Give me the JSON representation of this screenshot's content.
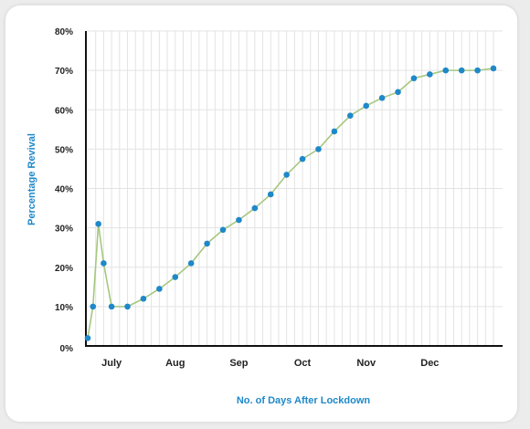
{
  "chart_data": {
    "type": "line",
    "title": "",
    "xlabel": "No. of Days After Lockdown",
    "ylabel": "Percentage Revival",
    "ylim": [
      0,
      80
    ],
    "y_ticks": [
      {
        "value": 0,
        "label": "0%"
      },
      {
        "value": 10,
        "label": "10%"
      },
      {
        "value": 20,
        "label": "20%"
      },
      {
        "value": 30,
        "label": "30%"
      },
      {
        "value": 40,
        "label": "40%"
      },
      {
        "value": 50,
        "label": "50%"
      },
      {
        "value": 60,
        "label": "60%"
      },
      {
        "value": 70,
        "label": "70%"
      },
      {
        "value": 80,
        "label": "80%"
      }
    ],
    "x_ticks": [
      {
        "value": 1.5,
        "label": "July"
      },
      {
        "value": 5.5,
        "label": "Aug"
      },
      {
        "value": 9.5,
        "label": "Sep"
      },
      {
        "value": 13.5,
        "label": "Oct"
      },
      {
        "value": 17.5,
        "label": "Nov"
      },
      {
        "value": 21.5,
        "label": "Dec"
      }
    ],
    "xlim": [
      0,
      25.5
    ],
    "grid": {
      "vertical": true,
      "horizontal": true
    },
    "series": [
      {
        "points": [
          {
            "x": 0,
            "y": 2
          },
          {
            "x": 0.33,
            "y": 10
          },
          {
            "x": 0.67,
            "y": 31
          },
          {
            "x": 1,
            "y": 21
          },
          {
            "x": 1.5,
            "y": 10
          },
          {
            "x": 2.5,
            "y": 10
          },
          {
            "x": 3.5,
            "y": 12
          },
          {
            "x": 4.5,
            "y": 14.5
          },
          {
            "x": 5.5,
            "y": 17.5
          },
          {
            "x": 6.5,
            "y": 21
          },
          {
            "x": 7.5,
            "y": 26
          },
          {
            "x": 8.5,
            "y": 29.5
          },
          {
            "x": 9.5,
            "y": 32
          },
          {
            "x": 10.5,
            "y": 35
          },
          {
            "x": 11.5,
            "y": 38.5
          },
          {
            "x": 12.5,
            "y": 43.5
          },
          {
            "x": 13.5,
            "y": 47.5
          },
          {
            "x": 14.5,
            "y": 50
          },
          {
            "x": 15.5,
            "y": 54.5
          },
          {
            "x": 16.5,
            "y": 58.5
          },
          {
            "x": 17.5,
            "y": 61
          },
          {
            "x": 18.5,
            "y": 63
          },
          {
            "x": 19.5,
            "y": 64.5
          },
          {
            "x": 20.5,
            "y": 68
          },
          {
            "x": 21.5,
            "y": 69
          },
          {
            "x": 22.5,
            "y": 70
          },
          {
            "x": 23.5,
            "y": 70
          },
          {
            "x": 24.5,
            "y": 70
          },
          {
            "x": 25.5,
            "y": 70.5
          }
        ]
      }
    ]
  },
  "colors": {
    "line": "#a6c77f",
    "marker": "#1f88c9",
    "axis_title": "#1f88c9",
    "grid": "#e3e3e3",
    "axis": "#111111"
  }
}
